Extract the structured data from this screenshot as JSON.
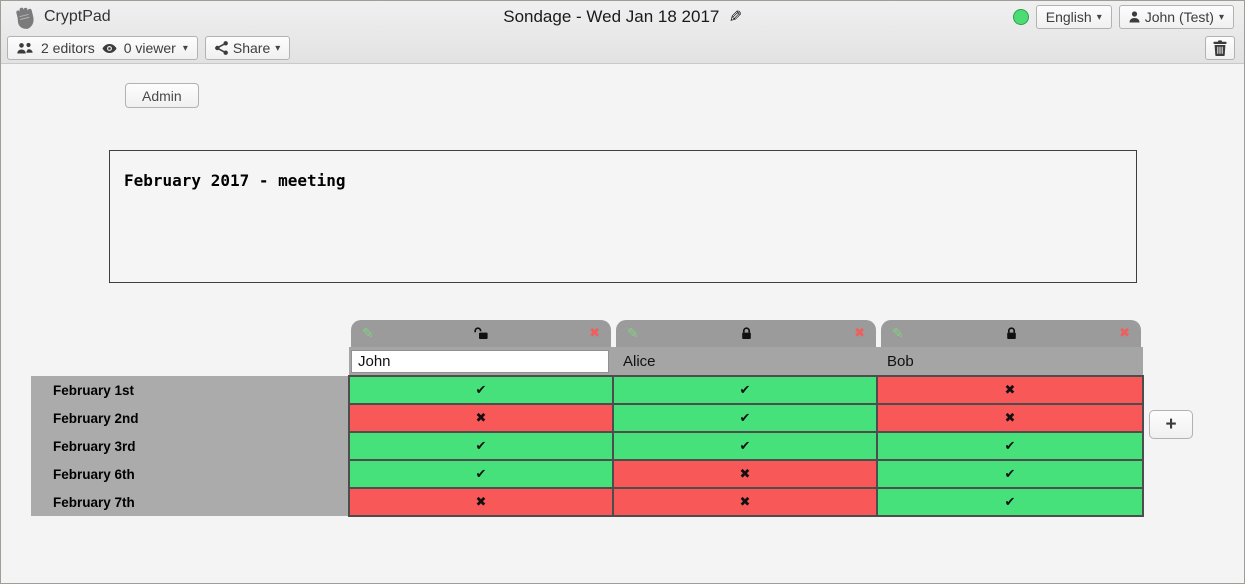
{
  "titlebar": {
    "brand": "CryptPad",
    "title": "Sondage - Wed Jan 18 2017",
    "language_label": "English",
    "user_label": "John (Test)",
    "caret": "▾",
    "status_color": "#4bdc74"
  },
  "toolbar": {
    "editors_label": "2 editors",
    "viewers_label": "0 viewer",
    "share_label": "Share"
  },
  "content": {
    "admin_label": "Admin",
    "description": "February 2017 - meeting"
  },
  "poll": {
    "add_column_label": "+",
    "glyphs": {
      "yes": "✔",
      "no": "✖",
      "edit": "✎",
      "remove": "✖"
    },
    "colors": {
      "yes": "#47e17b",
      "no": "#f95858",
      "tab": "#9b9b9b",
      "name_row": "#a5a5a5",
      "label_col": "#ababab",
      "gridline": "#4d4d4d"
    },
    "columns": [
      {
        "name": "John",
        "editable": true,
        "locked": false
      },
      {
        "name": "Alice",
        "editable": false,
        "locked": true
      },
      {
        "name": "Bob",
        "editable": false,
        "locked": true
      }
    ],
    "rows": [
      {
        "label": "February 1st",
        "votes": [
          "yes",
          "yes",
          "no"
        ]
      },
      {
        "label": "February 2nd",
        "votes": [
          "no",
          "yes",
          "no"
        ]
      },
      {
        "label": "February 3rd",
        "votes": [
          "yes",
          "yes",
          "yes"
        ]
      },
      {
        "label": "February 6th",
        "votes": [
          "yes",
          "no",
          "yes"
        ]
      },
      {
        "label": "February 7th",
        "votes": [
          "no",
          "no",
          "yes"
        ]
      }
    ]
  }
}
